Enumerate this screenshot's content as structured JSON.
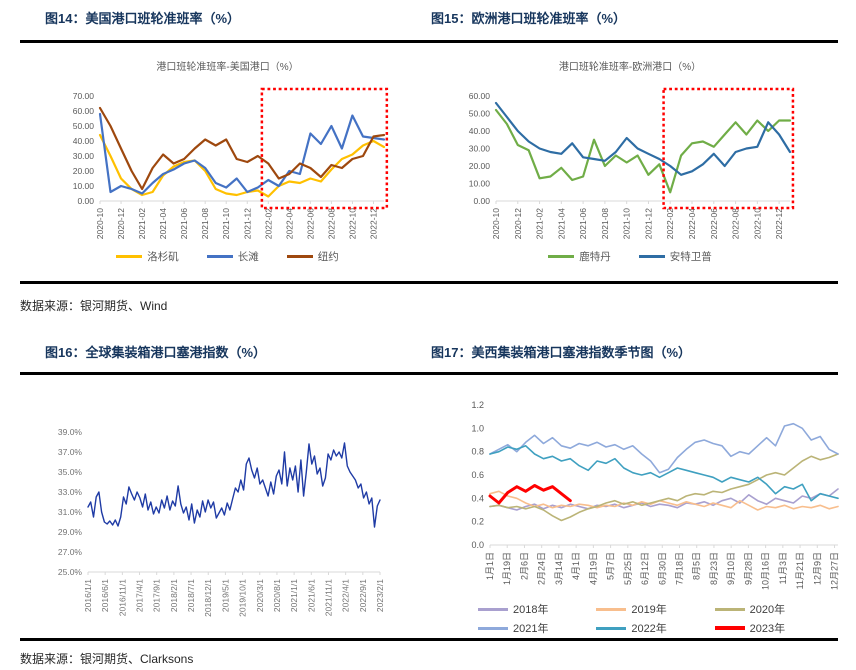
{
  "page": {
    "figures": {
      "fig14_title": "图14：美国港口班轮准班率（%）",
      "fig15_title": "图15：欧洲港口班轮准班率（%）",
      "fig16_title": "图16：全球集装箱港口塞港指数（%）",
      "fig17_title": "图17：美西集装箱港口塞港指数季节图（%）"
    },
    "sources": {
      "row1": "数据来源：银河期货、Wind",
      "row2": "数据来源：银河期货、Clarksons"
    },
    "colors": {
      "title_navy": "#17365D",
      "rule_black": "#000000",
      "annotation_red": "#FF0000",
      "tick_gray": "#595959"
    }
  },
  "chart_data": [
    {
      "type": "line",
      "title": "港口班轮准班率-美国港口（%）",
      "ylim": [
        0,
        70
      ],
      "grid": false,
      "legend_position": "bottom",
      "yticks": [
        {
          "v": 70,
          "label": "70.00"
        },
        {
          "v": 60,
          "label": "60.00"
        },
        {
          "v": 50,
          "label": "50.00"
        },
        {
          "v": 40,
          "label": "40.00"
        },
        {
          "v": 30,
          "label": "30.00"
        },
        {
          "v": 20,
          "label": "20.00"
        },
        {
          "v": 10,
          "label": "10.00"
        },
        {
          "v": 0,
          "label": "0.00"
        }
      ],
      "categories": [
        "2020-10",
        "2020-11",
        "2020-12",
        "2021-01",
        "2021-02",
        "2021-03",
        "2021-04",
        "2021-05",
        "2021-06",
        "2021-07",
        "2021-08",
        "2021-09",
        "2021-10",
        "2021-11",
        "2021-12",
        "2022-01",
        "2022-02",
        "2022-03",
        "2022-04",
        "2022-05",
        "2022-06",
        "2022-07",
        "2022-08",
        "2022-09",
        "2022-10",
        "2022-11",
        "2022-12",
        "2023-01"
      ],
      "xticklabels": [
        "2020-10",
        "2020-12",
        "2021-02",
        "2021-04",
        "2021-06",
        "2021-08",
        "2021-10",
        "2021-12",
        "2022-02",
        "2022-04",
        "2022-06",
        "2022-08",
        "2022-10",
        "2022-12"
      ],
      "xticks_span": 0.963,
      "series": [
        {
          "name": "洛杉矶",
          "color": "#FFC000",
          "values": [
            44,
            30,
            15,
            8,
            4,
            6,
            17,
            23,
            26,
            27,
            20,
            8,
            5,
            4,
            6,
            7,
            3,
            10,
            13,
            12,
            15,
            13,
            21,
            28,
            31,
            37,
            40,
            36
          ]
        },
        {
          "name": "长滩",
          "color": "#4472C4",
          "values": [
            58,
            6,
            10,
            8,
            5,
            12,
            18,
            21,
            25,
            27,
            22,
            12,
            9,
            15,
            6,
            9,
            14,
            10,
            20,
            18,
            45,
            38,
            50,
            35,
            57,
            43,
            42,
            41
          ]
        },
        {
          "name": "纽约",
          "color": "#9E480E",
          "values": [
            62,
            50,
            35,
            20,
            8,
            22,
            31,
            25,
            28,
            35,
            41,
            37,
            41,
            28,
            26,
            30,
            25,
            15,
            18,
            25,
            22,
            16,
            24,
            22,
            28,
            30,
            43,
            44
          ]
        }
      ],
      "annotation_box": {
        "x1": 0.57,
        "x2": 1.01,
        "color": "#FF0000"
      }
    },
    {
      "type": "line",
      "title": "港口班轮准班率-欧洲港口（%）",
      "ylim": [
        0,
        60
      ],
      "grid": false,
      "legend_position": "bottom",
      "yticks": [
        {
          "v": 60,
          "label": "60.00"
        },
        {
          "v": 50,
          "label": "50.00"
        },
        {
          "v": 40,
          "label": "40.00"
        },
        {
          "v": 30,
          "label": "30.00"
        },
        {
          "v": 20,
          "label": "20.00"
        },
        {
          "v": 10,
          "label": "10.00"
        },
        {
          "v": 0,
          "label": "0.00"
        }
      ],
      "categories": [
        "2020-10",
        "2020-11",
        "2020-12",
        "2021-01",
        "2021-02",
        "2021-03",
        "2021-04",
        "2021-05",
        "2021-06",
        "2021-07",
        "2021-08",
        "2021-09",
        "2021-10",
        "2021-11",
        "2021-12",
        "2022-01",
        "2022-02",
        "2022-03",
        "2022-04",
        "2022-05",
        "2022-06",
        "2022-07",
        "2022-08",
        "2022-09",
        "2022-10",
        "2022-11",
        "2022-12",
        "2023-01"
      ],
      "xticklabels": [
        "2020-10",
        "2020-12",
        "2021-02",
        "2021-04",
        "2021-06",
        "2021-08",
        "2021-10",
        "2021-12",
        "2022-02",
        "2022-04",
        "2022-06",
        "2022-08",
        "2022-10",
        "2022-12"
      ],
      "xticks_span": 0.963,
      "series": [
        {
          "name": "鹿特丹",
          "color": "#70AD47",
          "values": [
            52,
            44,
            32,
            29,
            13,
            14,
            19,
            12,
            14,
            35,
            20,
            26,
            22,
            26,
            15,
            21,
            5,
            26,
            33,
            34,
            31,
            38,
            45,
            38,
            46,
            40,
            46,
            46
          ]
        },
        {
          "name": "安特卫普",
          "color": "#2E6DA4",
          "values": [
            56,
            48,
            40,
            34,
            30,
            28,
            27,
            33,
            25,
            24,
            23,
            28,
            36,
            30,
            27,
            24,
            20,
            15,
            17,
            21,
            27,
            20,
            28,
            30,
            31,
            45,
            38,
            28
          ]
        }
      ],
      "annotation_box": {
        "x1": 0.57,
        "x2": 1.01,
        "color": "#FF0000"
      }
    },
    {
      "type": "line",
      "title": "",
      "ylim": [
        25,
        39
      ],
      "grid": false,
      "legend_position": "none",
      "yticks": [
        {
          "v": 39,
          "label": "39.0%"
        },
        {
          "v": 37,
          "label": "37.0%"
        },
        {
          "v": 35,
          "label": "35.0%"
        },
        {
          "v": 33,
          "label": "33.0%"
        },
        {
          "v": 31,
          "label": "31.0%"
        },
        {
          "v": 29,
          "label": "29.0%"
        },
        {
          "v": 27,
          "label": "27.0%"
        },
        {
          "v": 25,
          "label": "25.0%"
        }
      ],
      "xticklabels": [
        "2016/1/1",
        "2016/6/1",
        "2016/11/1",
        "2017/4/1",
        "2017/9/1",
        "2018/2/1",
        "2018/7/1",
        "2018/12/1",
        "2019/5/1",
        "2019/10/1",
        "2020/3/1",
        "2020/8/1",
        "2021/1/1",
        "2021/6/1",
        "2021/11/1",
        "2022/4/1",
        "2022/9/1",
        "2023/2/1"
      ],
      "xticks_span": 1,
      "series": [
        {
          "name": "全球集装箱港口塞港指数",
          "color": "#1F3BA5",
          "values": [
            31.5,
            32.0,
            30.5,
            32.5,
            33.0,
            31.0,
            30.0,
            29.8,
            30.1,
            29.7,
            30.2,
            29.6,
            30.5,
            32.5,
            31.8,
            33.5,
            32.8,
            32.2,
            33.0,
            32.4,
            31.5,
            32.8,
            31.2,
            32.0,
            30.8,
            31.5,
            30.9,
            32.2,
            31.4,
            32.6,
            31.2,
            32.1,
            31.6,
            33.6,
            31.8,
            30.9,
            31.5,
            30.2,
            31.8,
            29.9,
            31.2,
            30.5,
            32.1,
            31.0,
            32.2,
            31.4,
            32.0,
            30.4,
            30.9,
            31.4,
            30.7,
            31.9,
            31.2,
            32.3,
            33.4,
            33.0,
            34.2,
            33.2,
            35.8,
            36.4,
            35.2,
            34.4,
            35.4,
            33.8,
            34.2,
            33.4,
            32.6,
            34.0,
            32.8,
            34.6,
            35.2,
            33.8,
            37.0,
            33.6,
            35.4,
            34.2,
            35.6,
            33.0,
            36.2,
            32.6,
            35.0,
            37.8,
            35.8,
            36.6,
            34.8,
            35.4,
            33.6,
            34.4,
            36.8,
            36.2,
            37.2,
            36.6,
            37.0,
            36.4,
            37.9,
            35.6,
            35.0,
            34.6,
            34.2,
            33.4,
            33.8,
            32.4,
            33.0,
            31.8,
            32.4,
            29.5,
            31.6,
            32.2
          ]
        }
      ]
    },
    {
      "type": "line",
      "title": "",
      "ylim": [
        0,
        1.2
      ],
      "grid": false,
      "legend_position": "bottom",
      "yticks": [
        {
          "v": 1.2,
          "label": "1.2"
        },
        {
          "v": 1.0,
          "label": "1.0"
        },
        {
          "v": 0.8,
          "label": "0.8"
        },
        {
          "v": 0.6,
          "label": "0.6"
        },
        {
          "v": 0.4,
          "label": "0.4"
        },
        {
          "v": 0.2,
          "label": "0.2"
        },
        {
          "v": 0.0,
          "label": "0.0"
        }
      ],
      "xticklabels": [
        "1月1日",
        "1月19日",
        "2月6日",
        "2月24日",
        "3月14日",
        "4月1日",
        "4月19日",
        "5月7日",
        "5月25日",
        "6月12日",
        "6月30日",
        "7月18日",
        "8月5日",
        "8月23日",
        "9月10日",
        "9月28日",
        "10月16日",
        "11月3日",
        "11月21日",
        "12月9日",
        "12月27日"
      ],
      "xticks_span": 0.99,
      "series": [
        {
          "name": "2018年",
          "color": "#A9A0CF",
          "values": [
            0.33,
            0.34,
            0.32,
            0.3,
            0.33,
            0.35,
            0.31,
            0.34,
            0.32,
            0.35,
            0.33,
            0.31,
            0.34,
            0.33,
            0.35,
            0.32,
            0.34,
            0.36,
            0.33,
            0.35,
            0.34,
            0.32,
            0.36,
            0.35,
            0.37,
            0.34,
            0.38,
            0.4,
            0.36,
            0.43,
            0.38,
            0.35,
            0.4,
            0.38,
            0.36,
            0.42,
            0.4,
            0.44,
            0.42,
            0.48
          ]
        },
        {
          "name": "2019年",
          "color": "#F8BE8D",
          "values": [
            0.44,
            0.46,
            0.42,
            0.4,
            0.36,
            0.33,
            0.35,
            0.32,
            0.34,
            0.33,
            0.35,
            0.34,
            0.32,
            0.34,
            0.33,
            0.36,
            0.34,
            0.37,
            0.35,
            0.38,
            0.36,
            0.34,
            0.37,
            0.35,
            0.33,
            0.36,
            0.34,
            0.32,
            0.38,
            0.34,
            0.3,
            0.33,
            0.32,
            0.34,
            0.31,
            0.33,
            0.32,
            0.34,
            0.31,
            0.33
          ]
        },
        {
          "name": "2020年",
          "color": "#BBB477",
          "values": [
            0.33,
            0.34,
            0.32,
            0.33,
            0.31,
            0.33,
            0.3,
            0.25,
            0.21,
            0.24,
            0.28,
            0.31,
            0.33,
            0.36,
            0.38,
            0.35,
            0.37,
            0.34,
            0.36,
            0.38,
            0.4,
            0.38,
            0.42,
            0.44,
            0.43,
            0.46,
            0.45,
            0.48,
            0.5,
            0.52,
            0.56,
            0.6,
            0.62,
            0.6,
            0.66,
            0.72,
            0.76,
            0.73,
            0.75,
            0.78
          ]
        },
        {
          "name": "2021年",
          "color": "#8EA9DB",
          "values": [
            0.78,
            0.82,
            0.86,
            0.8,
            0.88,
            0.94,
            0.87,
            0.92,
            0.85,
            0.83,
            0.87,
            0.85,
            0.88,
            0.84,
            0.86,
            0.82,
            0.85,
            0.78,
            0.72,
            0.62,
            0.65,
            0.75,
            0.82,
            0.88,
            0.9,
            0.87,
            0.85,
            0.76,
            0.8,
            0.78,
            0.85,
            0.92,
            0.85,
            1.02,
            1.04,
            1.0,
            0.9,
            0.93,
            0.82,
            0.78
          ]
        },
        {
          "name": "2022年",
          "color": "#3FA0C0",
          "values": [
            0.78,
            0.8,
            0.84,
            0.82,
            0.85,
            0.78,
            0.74,
            0.76,
            0.72,
            0.74,
            0.68,
            0.64,
            0.72,
            0.7,
            0.74,
            0.66,
            0.62,
            0.6,
            0.62,
            0.58,
            0.62,
            0.66,
            0.64,
            0.62,
            0.6,
            0.58,
            0.54,
            0.58,
            0.56,
            0.54,
            0.58,
            0.52,
            0.44,
            0.5,
            0.48,
            0.52,
            0.38,
            0.44,
            0.42,
            0.4
          ]
        },
        {
          "name": "2023年",
          "color": "#FF0000",
          "width": 3,
          "values": [
            0.42,
            0.36,
            0.45,
            0.5,
            0.46,
            0.51,
            0.47,
            0.5,
            0.44,
            0.38
          ]
        }
      ]
    }
  ]
}
